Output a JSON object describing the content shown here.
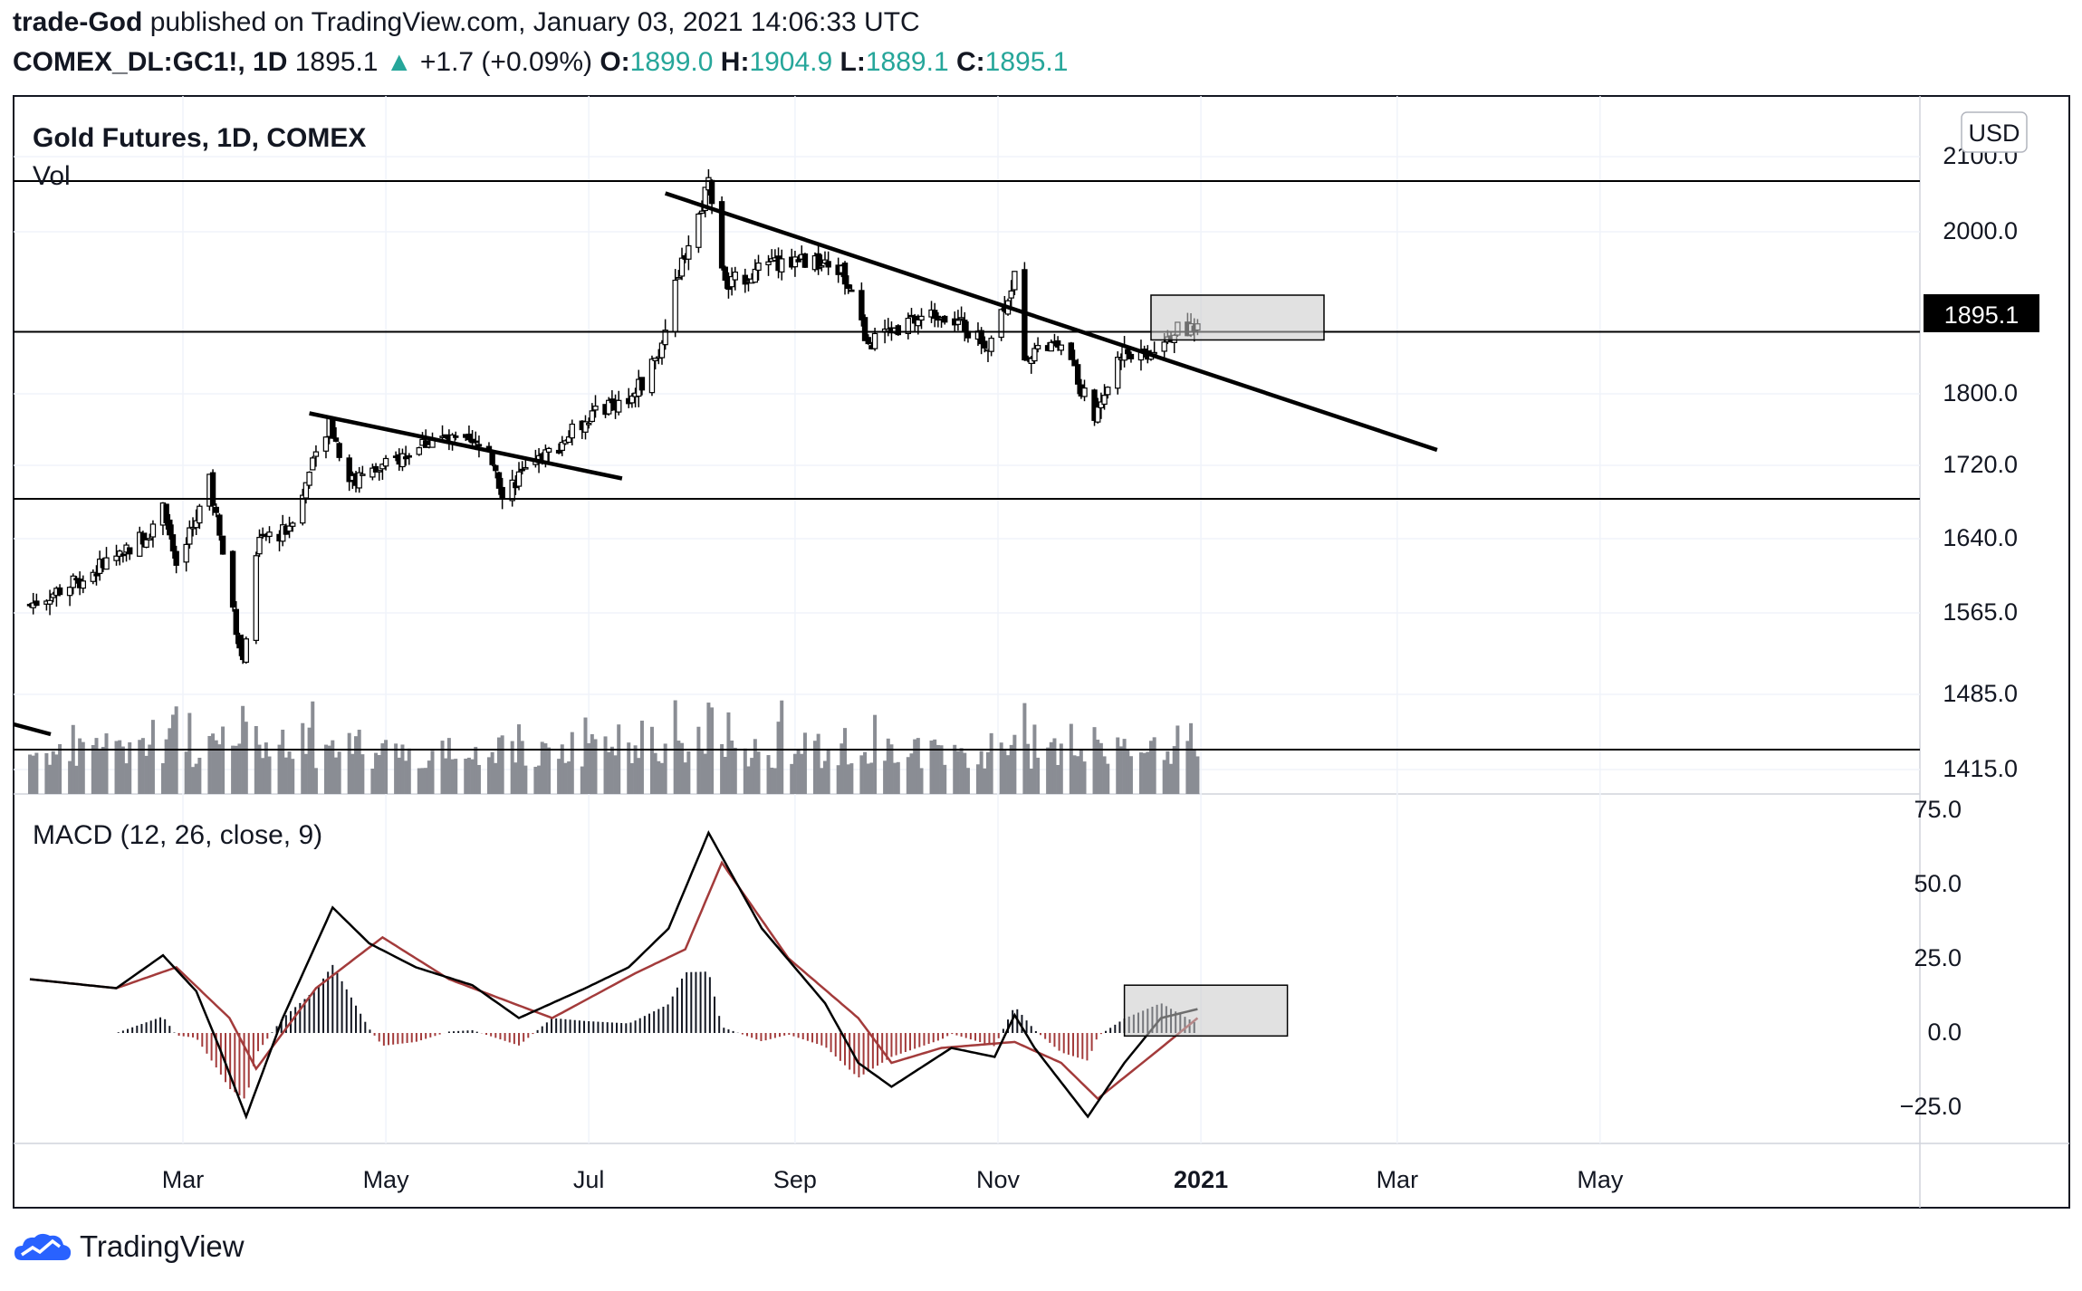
{
  "header": {
    "author": "trade-God",
    "published": "published on TradingView.com, January 03, 2021 14:06:33 UTC",
    "symbol": "COMEX_DL:GC1!, 1D",
    "last": "1895.1",
    "change": "+1.7 (+0.09%)",
    "o_label": "O:",
    "o_value": "1899.0",
    "h_label": "H:",
    "h_value": "1904.9",
    "l_label": "L:",
    "l_value": "1889.1",
    "c_label": "C:",
    "c_value": "1895.1"
  },
  "footer": {
    "brand": "TradingView",
    "icon": "tradingview-cloud-logo-icon"
  },
  "colors": {
    "up": "#26a69a",
    "ink": "#131722",
    "signal": "#a33b3b",
    "hist_neg": "#a33b3b",
    "hist_pos": "#131722"
  },
  "chart_data": [
    {
      "type": "candlestick",
      "title": "Gold Futures, 1D, COMEX",
      "sublabel": "Vol",
      "currency": "USD",
      "last_price_label": "1895.1",
      "y_ticks": [
        "2100.0",
        "2000.0",
        "1895.1",
        "1800.0",
        "1720.0",
        "1640.0",
        "1565.0",
        "1485.0",
        "1415.0"
      ],
      "x_ticks": [
        "Mar",
        "May",
        "Jul",
        "Sep",
        "Nov",
        "2021",
        "Mar",
        "May"
      ],
      "close_path": [
        [
          "2020-01-15",
          1550
        ],
        [
          "2020-02-01",
          1585
        ],
        [
          "2020-02-20",
          1640
        ],
        [
          "2020-02-24",
          1680
        ],
        [
          "2020-02-28",
          1590
        ],
        [
          "2020-03-09",
          1700
        ],
        [
          "2020-03-19",
          1480
        ],
        [
          "2020-03-24",
          1630
        ],
        [
          "2020-04-01",
          1640
        ],
        [
          "2020-04-14",
          1770
        ],
        [
          "2020-04-21",
          1700
        ],
        [
          "2020-05-01",
          1720
        ],
        [
          "2020-05-15",
          1755
        ],
        [
          "2020-06-01",
          1740
        ],
        [
          "2020-06-05",
          1690
        ],
        [
          "2020-06-20",
          1740
        ],
        [
          "2020-07-01",
          1780
        ],
        [
          "2020-07-15",
          1810
        ],
        [
          "2020-07-22",
          1860
        ],
        [
          "2020-07-28",
          1960
        ],
        [
          "2020-08-04",
          2040
        ],
        [
          "2020-08-06",
          2070
        ],
        [
          "2020-08-11",
          1940
        ],
        [
          "2020-08-15",
          1950
        ],
        [
          "2020-09-01",
          1975
        ],
        [
          "2020-09-15",
          1960
        ],
        [
          "2020-09-23",
          1870
        ],
        [
          "2020-10-01",
          1890
        ],
        [
          "2020-10-15",
          1910
        ],
        [
          "2020-10-29",
          1870
        ],
        [
          "2020-11-06",
          1950
        ],
        [
          "2020-11-09",
          1860
        ],
        [
          "2020-11-20",
          1870
        ],
        [
          "2020-11-30",
          1780
        ],
        [
          "2020-12-08",
          1860
        ],
        [
          "2020-12-16",
          1860
        ],
        [
          "2020-12-21",
          1880
        ],
        [
          "2020-12-31",
          1895
        ]
      ],
      "horizontal_levels": [
        2070,
        1885,
        1680
      ],
      "trendlines": [
        {
          "from": [
            "2020-04-08",
            1785
          ],
          "to": [
            "2020-07-11",
            1705
          ]
        },
        {
          "from": [
            "2020-07-24",
            2055
          ],
          "to": [
            "2021-03-13",
            1740
          ]
        }
      ],
      "annotation_box": {
        "from": [
          "2020-12-17",
          1930
        ],
        "to": [
          "2021-02-07",
          1875
        ]
      },
      "volume_reference": "horizontal line near recent volume peaks"
    },
    {
      "type": "line",
      "title": "MACD (12, 26, close, 9)",
      "y_ticks": [
        "75.0",
        "50.0",
        "25.0",
        "0.0",
        "−25.0"
      ],
      "ylim": [
        -35,
        78
      ],
      "series": [
        {
          "name": "MACD",
          "points": [
            [
              "2020-01-15",
              18
            ],
            [
              "2020-02-10",
              15
            ],
            [
              "2020-02-24",
              26
            ],
            [
              "2020-03-05",
              14
            ],
            [
              "2020-03-12",
              -5
            ],
            [
              "2020-03-20",
              -28
            ],
            [
              "2020-03-31",
              5
            ],
            [
              "2020-04-15",
              42
            ],
            [
              "2020-04-26",
              30
            ],
            [
              "2020-05-10",
              22
            ],
            [
              "2020-05-27",
              16
            ],
            [
              "2020-06-10",
              5
            ],
            [
              "2020-06-30",
              15
            ],
            [
              "2020-07-13",
              22
            ],
            [
              "2020-07-25",
              35
            ],
            [
              "2020-08-06",
              67
            ],
            [
              "2020-08-22",
              35
            ],
            [
              "2020-09-10",
              10
            ],
            [
              "2020-09-20",
              -10
            ],
            [
              "2020-09-30",
              -18
            ],
            [
              "2020-10-18",
              -5
            ],
            [
              "2020-10-31",
              -8
            ],
            [
              "2020-11-06",
              6
            ],
            [
              "2020-11-12",
              -5
            ],
            [
              "2020-11-28",
              -28
            ],
            [
              "2020-12-09",
              -10
            ],
            [
              "2020-12-20",
              5
            ],
            [
              "2020-12-31",
              8
            ]
          ]
        },
        {
          "name": "Signal",
          "points": [
            [
              "2020-01-15",
              18
            ],
            [
              "2020-02-10",
              15
            ],
            [
              "2020-02-28",
              22
            ],
            [
              "2020-03-15",
              5
            ],
            [
              "2020-03-23",
              -12
            ],
            [
              "2020-04-10",
              15
            ],
            [
              "2020-04-30",
              32
            ],
            [
              "2020-05-20",
              18
            ],
            [
              "2020-06-20",
              5
            ],
            [
              "2020-07-15",
              20
            ],
            [
              "2020-07-30",
              28
            ],
            [
              "2020-08-10",
              57
            ],
            [
              "2020-08-30",
              25
            ],
            [
              "2020-09-20",
              5
            ],
            [
              "2020-09-30",
              -10
            ],
            [
              "2020-10-15",
              -5
            ],
            [
              "2020-11-06",
              -3
            ],
            [
              "2020-11-20",
              -10
            ],
            [
              "2020-12-01",
              -22
            ],
            [
              "2020-12-20",
              -5
            ],
            [
              "2020-12-31",
              5
            ]
          ]
        }
      ],
      "annotation_box": {
        "from": [
          "2020-12-09",
          16
        ],
        "to": [
          "2021-01-27",
          -1
        ]
      }
    }
  ]
}
